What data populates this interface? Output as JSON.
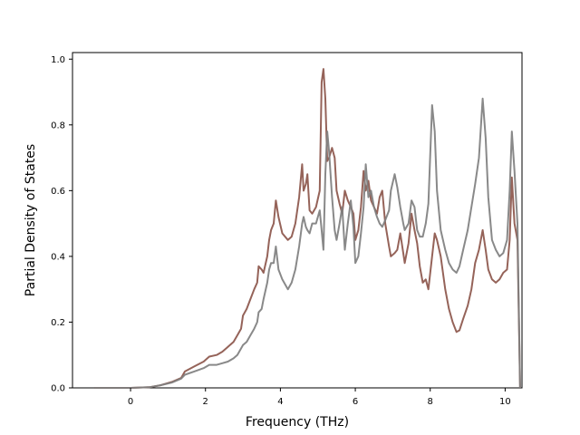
{
  "chart_data": {
    "type": "line",
    "title": "",
    "xlabel": "Frequency (THz)",
    "ylabel": "Partial Density of States",
    "xlim": [
      -1.55,
      10.45
    ],
    "ylim": [
      0.0,
      1.02
    ],
    "xticks": [
      0,
      2,
      4,
      6,
      8,
      10
    ],
    "xtick_labels": [
      "0",
      "2",
      "4",
      "6",
      "8",
      "10"
    ],
    "yticks": [
      0.0,
      0.2,
      0.4,
      0.6,
      0.8,
      1.0
    ],
    "ytick_labels": [
      "0.0",
      "0.2",
      "0.4",
      "0.6",
      "0.8",
      "1.0"
    ],
    "grid": false,
    "legend": "none",
    "series": [
      {
        "color": "#8c564b",
        "points": [
          [
            -0.95,
            0.0
          ],
          [
            0.0,
            0.0
          ],
          [
            0.5,
            0.002
          ],
          [
            0.8,
            0.008
          ],
          [
            1.1,
            0.018
          ],
          [
            1.35,
            0.03
          ],
          [
            1.45,
            0.05
          ],
          [
            1.7,
            0.065
          ],
          [
            1.95,
            0.08
          ],
          [
            2.1,
            0.095
          ],
          [
            2.3,
            0.1
          ],
          [
            2.45,
            0.11
          ],
          [
            2.6,
            0.125
          ],
          [
            2.75,
            0.14
          ],
          [
            2.85,
            0.16
          ],
          [
            2.95,
            0.18
          ],
          [
            3.0,
            0.22
          ],
          [
            3.1,
            0.24
          ],
          [
            3.2,
            0.27
          ],
          [
            3.3,
            0.3
          ],
          [
            3.38,
            0.32
          ],
          [
            3.42,
            0.37
          ],
          [
            3.5,
            0.36
          ],
          [
            3.55,
            0.35
          ],
          [
            3.65,
            0.4
          ],
          [
            3.7,
            0.45
          ],
          [
            3.75,
            0.48
          ],
          [
            3.82,
            0.5
          ],
          [
            3.88,
            0.57
          ],
          [
            3.95,
            0.52
          ],
          [
            4.05,
            0.47
          ],
          [
            4.2,
            0.45
          ],
          [
            4.3,
            0.46
          ],
          [
            4.4,
            0.5
          ],
          [
            4.5,
            0.58
          ],
          [
            4.58,
            0.68
          ],
          [
            4.62,
            0.6
          ],
          [
            4.68,
            0.62
          ],
          [
            4.72,
            0.65
          ],
          [
            4.78,
            0.54
          ],
          [
            4.85,
            0.53
          ],
          [
            4.95,
            0.55
          ],
          [
            5.05,
            0.6
          ],
          [
            5.1,
            0.93
          ],
          [
            5.15,
            0.97
          ],
          [
            5.2,
            0.88
          ],
          [
            5.25,
            0.69
          ],
          [
            5.3,
            0.7
          ],
          [
            5.38,
            0.73
          ],
          [
            5.45,
            0.7
          ],
          [
            5.5,
            0.6
          ],
          [
            5.58,
            0.56
          ],
          [
            5.65,
            0.53
          ],
          [
            5.72,
            0.6
          ],
          [
            5.8,
            0.57
          ],
          [
            5.88,
            0.55
          ],
          [
            5.95,
            0.53
          ],
          [
            6.0,
            0.45
          ],
          [
            6.08,
            0.48
          ],
          [
            6.15,
            0.55
          ],
          [
            6.22,
            0.66
          ],
          [
            6.28,
            0.6
          ],
          [
            6.35,
            0.63
          ],
          [
            6.42,
            0.57
          ],
          [
            6.5,
            0.55
          ],
          [
            6.58,
            0.53
          ],
          [
            6.65,
            0.58
          ],
          [
            6.72,
            0.6
          ],
          [
            6.8,
            0.5
          ],
          [
            6.9,
            0.43
          ],
          [
            6.95,
            0.4
          ],
          [
            7.05,
            0.41
          ],
          [
            7.12,
            0.42
          ],
          [
            7.2,
            0.47
          ],
          [
            7.28,
            0.41
          ],
          [
            7.32,
            0.38
          ],
          [
            7.42,
            0.44
          ],
          [
            7.5,
            0.53
          ],
          [
            7.58,
            0.48
          ],
          [
            7.65,
            0.44
          ],
          [
            7.72,
            0.37
          ],
          [
            7.8,
            0.32
          ],
          [
            7.88,
            0.33
          ],
          [
            7.95,
            0.3
          ],
          [
            8.05,
            0.4
          ],
          [
            8.12,
            0.47
          ],
          [
            8.18,
            0.45
          ],
          [
            8.28,
            0.4
          ],
          [
            8.4,
            0.3
          ],
          [
            8.5,
            0.24
          ],
          [
            8.6,
            0.2
          ],
          [
            8.7,
            0.17
          ],
          [
            8.78,
            0.175
          ],
          [
            8.88,
            0.21
          ],
          [
            9.0,
            0.25
          ],
          [
            9.1,
            0.3
          ],
          [
            9.2,
            0.38
          ],
          [
            9.3,
            0.42
          ],
          [
            9.4,
            0.48
          ],
          [
            9.48,
            0.42
          ],
          [
            9.55,
            0.36
          ],
          [
            9.65,
            0.33
          ],
          [
            9.75,
            0.32
          ],
          [
            9.85,
            0.33
          ],
          [
            9.95,
            0.35
          ],
          [
            10.05,
            0.36
          ],
          [
            10.12,
            0.45
          ],
          [
            10.18,
            0.64
          ],
          [
            10.25,
            0.5
          ],
          [
            10.33,
            0.45
          ],
          [
            10.4,
            0.0
          ]
        ]
      },
      {
        "color": "#7f7f7f",
        "points": [
          [
            -0.95,
            0.0
          ],
          [
            0.0,
            0.0
          ],
          [
            0.5,
            0.002
          ],
          [
            0.8,
            0.008
          ],
          [
            1.1,
            0.016
          ],
          [
            1.35,
            0.028
          ],
          [
            1.45,
            0.04
          ],
          [
            1.7,
            0.05
          ],
          [
            1.95,
            0.06
          ],
          [
            2.1,
            0.07
          ],
          [
            2.3,
            0.07
          ],
          [
            2.45,
            0.075
          ],
          [
            2.6,
            0.08
          ],
          [
            2.75,
            0.09
          ],
          [
            2.85,
            0.1
          ],
          [
            2.95,
            0.12
          ],
          [
            3.0,
            0.13
          ],
          [
            3.1,
            0.14
          ],
          [
            3.2,
            0.16
          ],
          [
            3.3,
            0.18
          ],
          [
            3.38,
            0.2
          ],
          [
            3.42,
            0.23
          ],
          [
            3.5,
            0.24
          ],
          [
            3.55,
            0.27
          ],
          [
            3.65,
            0.32
          ],
          [
            3.7,
            0.36
          ],
          [
            3.75,
            0.38
          ],
          [
            3.82,
            0.38
          ],
          [
            3.88,
            0.43
          ],
          [
            3.95,
            0.36
          ],
          [
            4.05,
            0.33
          ],
          [
            4.2,
            0.3
          ],
          [
            4.3,
            0.32
          ],
          [
            4.4,
            0.36
          ],
          [
            4.5,
            0.43
          ],
          [
            4.58,
            0.5
          ],
          [
            4.62,
            0.52
          ],
          [
            4.68,
            0.49
          ],
          [
            4.72,
            0.48
          ],
          [
            4.78,
            0.47
          ],
          [
            4.85,
            0.5
          ],
          [
            4.95,
            0.5
          ],
          [
            5.05,
            0.54
          ],
          [
            5.1,
            0.48
          ],
          [
            5.15,
            0.42
          ],
          [
            5.2,
            0.65
          ],
          [
            5.25,
            0.78
          ],
          [
            5.3,
            0.72
          ],
          [
            5.38,
            0.58
          ],
          [
            5.45,
            0.48
          ],
          [
            5.5,
            0.45
          ],
          [
            5.58,
            0.5
          ],
          [
            5.65,
            0.55
          ],
          [
            5.72,
            0.42
          ],
          [
            5.8,
            0.5
          ],
          [
            5.88,
            0.57
          ],
          [
            5.95,
            0.49
          ],
          [
            6.0,
            0.38
          ],
          [
            6.08,
            0.4
          ],
          [
            6.15,
            0.47
          ],
          [
            6.22,
            0.55
          ],
          [
            6.28,
            0.68
          ],
          [
            6.35,
            0.58
          ],
          [
            6.42,
            0.6
          ],
          [
            6.5,
            0.55
          ],
          [
            6.58,
            0.52
          ],
          [
            6.65,
            0.5
          ],
          [
            6.72,
            0.49
          ],
          [
            6.8,
            0.51
          ],
          [
            6.9,
            0.54
          ],
          [
            6.95,
            0.6
          ],
          [
            7.05,
            0.65
          ],
          [
            7.12,
            0.61
          ],
          [
            7.2,
            0.55
          ],
          [
            7.28,
            0.5
          ],
          [
            7.32,
            0.48
          ],
          [
            7.42,
            0.5
          ],
          [
            7.5,
            0.57
          ],
          [
            7.58,
            0.55
          ],
          [
            7.65,
            0.48
          ],
          [
            7.72,
            0.46
          ],
          [
            7.8,
            0.46
          ],
          [
            7.88,
            0.5
          ],
          [
            7.95,
            0.56
          ],
          [
            8.05,
            0.86
          ],
          [
            8.12,
            0.78
          ],
          [
            8.18,
            0.6
          ],
          [
            8.28,
            0.48
          ],
          [
            8.4,
            0.42
          ],
          [
            8.5,
            0.38
          ],
          [
            8.6,
            0.36
          ],
          [
            8.7,
            0.35
          ],
          [
            8.78,
            0.37
          ],
          [
            8.88,
            0.42
          ],
          [
            9.0,
            0.48
          ],
          [
            9.1,
            0.55
          ],
          [
            9.2,
            0.62
          ],
          [
            9.3,
            0.7
          ],
          [
            9.4,
            0.88
          ],
          [
            9.48,
            0.76
          ],
          [
            9.55,
            0.58
          ],
          [
            9.65,
            0.45
          ],
          [
            9.75,
            0.42
          ],
          [
            9.85,
            0.4
          ],
          [
            9.95,
            0.41
          ],
          [
            10.05,
            0.45
          ],
          [
            10.12,
            0.6
          ],
          [
            10.18,
            0.78
          ],
          [
            10.25,
            0.66
          ],
          [
            10.33,
            0.5
          ],
          [
            10.4,
            0.0
          ]
        ]
      }
    ]
  }
}
